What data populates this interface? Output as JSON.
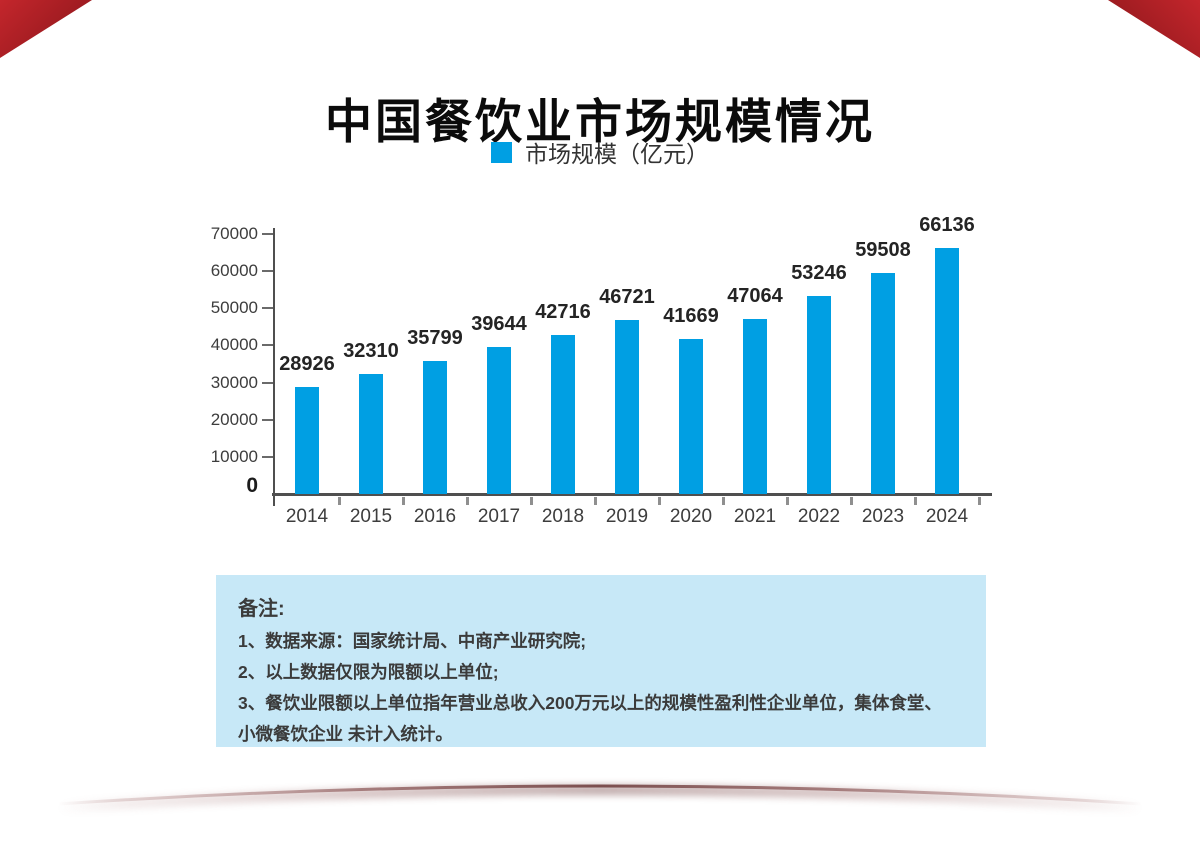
{
  "header": {
    "title": "中国餐饮业市场规模情况"
  },
  "legend": {
    "label": "市场规模（亿元）",
    "swatch_color": "#009FE3"
  },
  "chart_data": {
    "type": "bar",
    "title": "中国餐饮业市场规模情况",
    "categories": [
      "2014",
      "2015",
      "2016",
      "2017",
      "2018",
      "2019",
      "2020",
      "2021",
      "2022",
      "2023",
      "2024"
    ],
    "values": [
      28926,
      32310,
      35799,
      39644,
      42716,
      46721,
      41669,
      47064,
      53246,
      59508,
      66136
    ],
    "series_name": "市场规模（亿元）",
    "xlabel": "",
    "ylabel": "",
    "ylim": [
      0,
      70000
    ],
    "yticks": [
      0,
      10000,
      20000,
      30000,
      40000,
      50000,
      60000,
      70000
    ],
    "grid": false,
    "legend_position": "top",
    "bar_color": "#009FE3",
    "value_labels": true
  },
  "notes": {
    "title": "备注:",
    "lines": [
      "1、数据来源：国家统计局、中商产业研究院;",
      "2、以上数据仅限为限额以上单位;",
      "3、餐饮业限额以上单位指年营业总收入200万元以上的规模性盈利性企业单位，集体食堂、小微餐饮企业 未计入统计。"
    ]
  },
  "colors": {
    "bar": "#009FE3",
    "axis": "#4f4f4f",
    "value_label": "#242424",
    "tick_label": "#3d3d3d",
    "notes_bg": "#C7E8F7",
    "notes_text": "#3b3b3b",
    "corner_red": "#c4262c",
    "corner_red_dark": "#871418",
    "arc_maroon": "#764848"
  }
}
